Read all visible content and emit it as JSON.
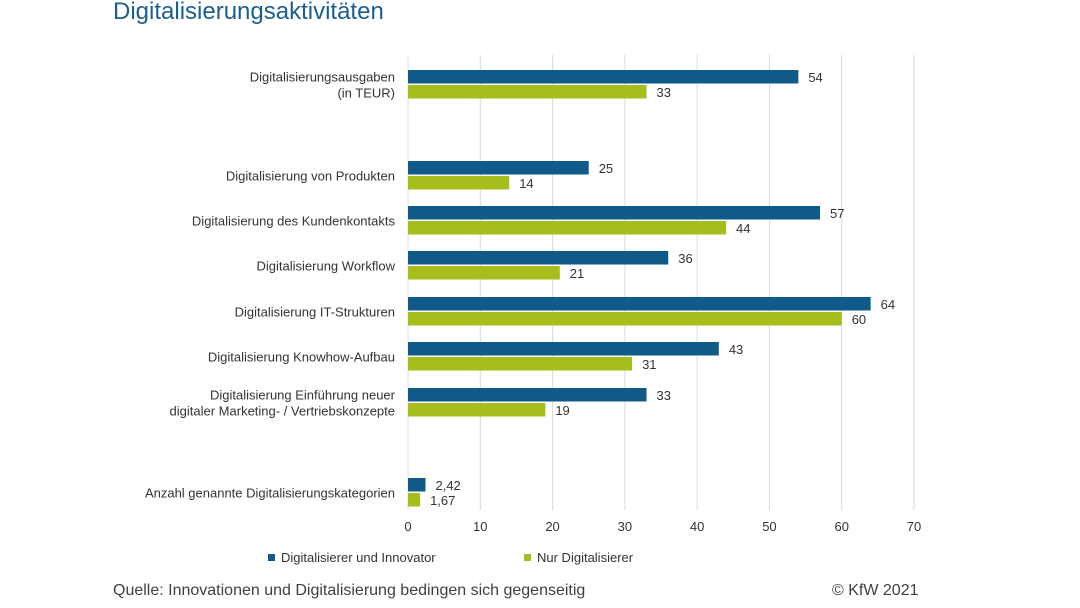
{
  "title": "Digitalisierungsaktivitäten",
  "colors": {
    "series1": "#0f5a87",
    "series2": "#a6bd1c",
    "text": "#333333",
    "grid": "#d9d9d9"
  },
  "legend": {
    "series1": "Digitalisierer und Innovator",
    "series2": "Nur Digitalisierer"
  },
  "footer": {
    "source": "Quelle: Innovationen und Digitalisierung bedingen sich gegenseitig",
    "copyright": "© KfW 2021"
  },
  "chart_data": {
    "type": "bar",
    "orientation": "horizontal",
    "title": "Digitalisierungsaktivitäten",
    "xlim": [
      0,
      70
    ],
    "xticks": [
      "0",
      "10",
      "20",
      "30",
      "40",
      "50",
      "60",
      "70"
    ],
    "grid": true,
    "legend_position": "bottom",
    "categories": [
      [
        "Digitalisierungsausgaben",
        "(in TEUR)"
      ],
      [
        "Digitalisierung von Produkten"
      ],
      [
        "Digitalisierung des Kundenkontakts"
      ],
      [
        "Digitalisierung Workflow"
      ],
      [
        "Digitalisierung IT-Strukturen"
      ],
      [
        "Digitalisierung Knowhow-Aufbau"
      ],
      [
        "Digitalisierung Einführung neuer",
        "digitaler Marketing- / Vertriebskonzepte"
      ],
      [
        "Anzahl genannte Digitalisierungskategorien"
      ]
    ],
    "series": [
      {
        "name": "Digitalisierer und Innovator",
        "values": [
          54,
          25,
          57,
          36,
          64,
          43,
          33,
          2.42
        ],
        "labels": [
          "54",
          "25",
          "57",
          "36",
          "64",
          "43",
          "33",
          "2,42"
        ]
      },
      {
        "name": "Nur Digitalisierer",
        "values": [
          33,
          14,
          44,
          21,
          60,
          31,
          19,
          1.67
        ],
        "labels": [
          "33",
          "14",
          "44",
          "21",
          "60",
          "31",
          "19",
          "1,67"
        ]
      }
    ]
  }
}
